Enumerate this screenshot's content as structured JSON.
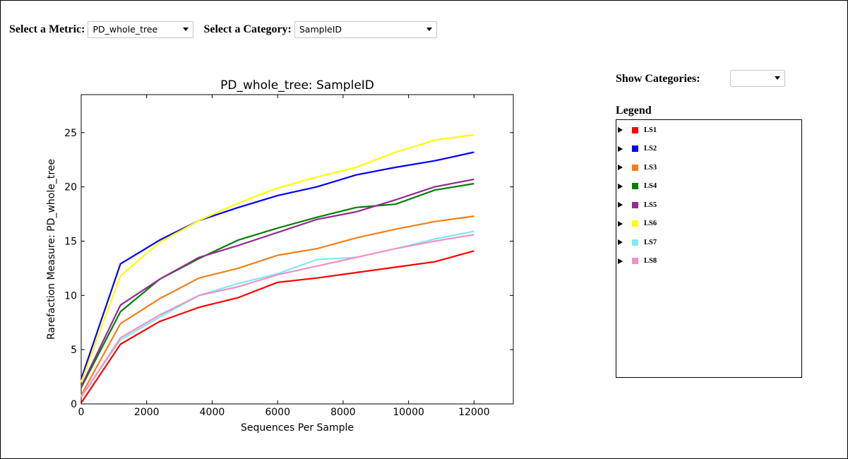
{
  "controls": {
    "metric_label": "Select a Metric:",
    "metric_value": "PD_whole_tree",
    "category_label": "Select a Category:",
    "category_value": "SampleID"
  },
  "side": {
    "show_categories_label": "Show Categories:",
    "show_categories_value": "",
    "legend_title": "Legend"
  },
  "chart_data": {
    "type": "line",
    "title": "PD_whole_tree: SampleID",
    "xlabel": "Sequences Per Sample",
    "ylabel": "Rarefaction Measure: PD_whole_tree",
    "xlim": [
      0,
      13200
    ],
    "ylim": [
      0,
      28.5
    ],
    "xticks": [
      0,
      2000,
      4000,
      6000,
      8000,
      10000,
      12000
    ],
    "yticks": [
      0,
      5,
      10,
      15,
      20,
      25
    ],
    "grid": false,
    "legend_position": "right-panel",
    "x": [
      0,
      1200,
      2400,
      3600,
      4800,
      6000,
      7200,
      8400,
      9600,
      10800,
      12000
    ],
    "series": [
      {
        "name": "LS1",
        "color": "#ff0000",
        "values": [
          0.1,
          5.5,
          7.6,
          8.9,
          9.8,
          11.2,
          11.6,
          12.1,
          12.6,
          13.1,
          14.1
        ]
      },
      {
        "name": "LS2",
        "color": "#0000ff",
        "values": [
          2.3,
          12.9,
          15.1,
          16.9,
          18.1,
          19.2,
          20.0,
          21.1,
          21.8,
          22.4,
          23.2
        ]
      },
      {
        "name": "LS3",
        "color": "#f57f16",
        "values": [
          0.8,
          7.4,
          9.7,
          11.6,
          12.5,
          13.7,
          14.3,
          15.3,
          16.1,
          16.8,
          17.3
        ]
      },
      {
        "name": "LS4",
        "color": "#008000",
        "values": [
          1.5,
          8.5,
          11.5,
          13.4,
          15.1,
          16.2,
          17.2,
          18.1,
          18.4,
          19.7,
          20.3
        ]
      },
      {
        "name": "LS5",
        "color": "#922b92",
        "values": [
          1.6,
          9.1,
          11.5,
          13.5,
          14.6,
          15.8,
          17.0,
          17.7,
          18.8,
          20.0,
          20.7
        ]
      },
      {
        "name": "LS6",
        "color": "#ffff00",
        "values": [
          2.0,
          11.8,
          14.9,
          16.9,
          18.5,
          19.9,
          20.9,
          21.8,
          23.2,
          24.3,
          24.8
        ]
      },
      {
        "name": "LS7",
        "color": "#7fe8f5",
        "values": [
          0.7,
          5.9,
          8.0,
          10.0,
          11.1,
          12.0,
          13.3,
          13.5,
          14.3,
          15.2,
          15.9
        ]
      },
      {
        "name": "LS8",
        "color": "#f291c4",
        "values": [
          0.6,
          6.1,
          8.2,
          10.0,
          10.8,
          11.9,
          12.7,
          13.5,
          14.3,
          15.0,
          15.6
        ]
      }
    ]
  }
}
